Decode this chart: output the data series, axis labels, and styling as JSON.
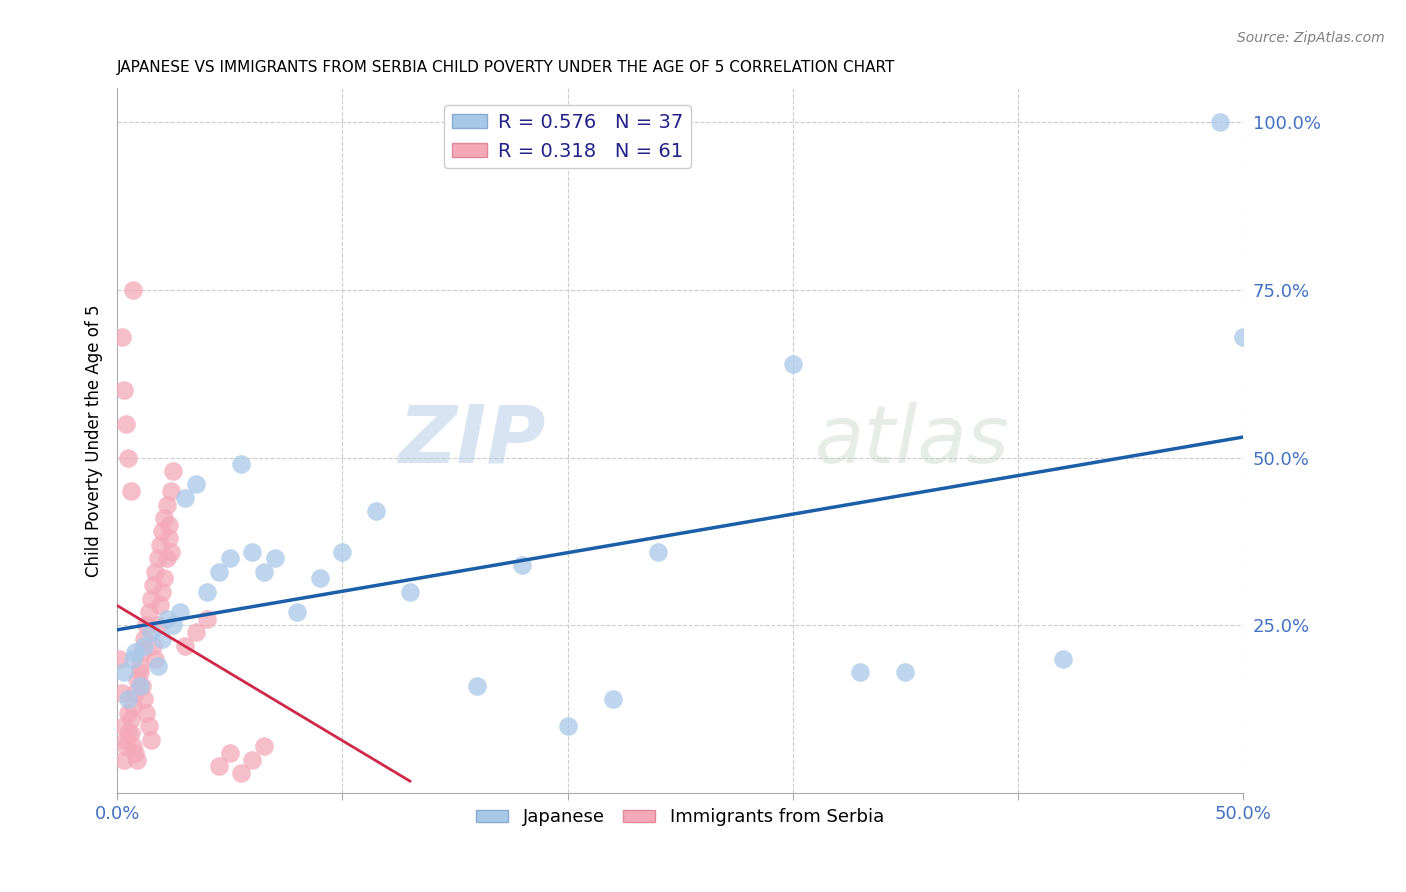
{
  "title": "JAPANESE VS IMMIGRANTS FROM SERBIA CHILD POVERTY UNDER THE AGE OF 5 CORRELATION CHART",
  "source": "Source: ZipAtlas.com",
  "ylabel": "Child Poverty Under the Age of 5",
  "xlim": [
    0.0,
    0.5
  ],
  "ylim": [
    0.0,
    1.05
  ],
  "japanese_R": 0.576,
  "japanese_N": 37,
  "serbia_R": 0.318,
  "serbia_N": 61,
  "japanese_color": "#a8c8e8",
  "japanese_line_color": "#1a5fa8",
  "serbia_color": "#f4a8b8",
  "serbia_line_color": "#d02848",
  "watermark_zip": "ZIP",
  "watermark_atlas": "atlas",
  "legend_label1": "R = 0.576   N = 37",
  "legend_label2": "R = 0.318   N = 61",
  "bottom_legend_japanese": "Japanese",
  "bottom_legend_serbia": "Immigrants from Serbia",
  "japanese_x": [
    0.003,
    0.005,
    0.007,
    0.008,
    0.01,
    0.012,
    0.015,
    0.018,
    0.02,
    0.022,
    0.025,
    0.028,
    0.03,
    0.035,
    0.04,
    0.045,
    0.05,
    0.055,
    0.06,
    0.065,
    0.07,
    0.08,
    0.09,
    0.1,
    0.115,
    0.13,
    0.16,
    0.18,
    0.2,
    0.22,
    0.24,
    0.3,
    0.33,
    0.35,
    0.42,
    0.49,
    0.5
  ],
  "japanese_y": [
    0.18,
    0.14,
    0.2,
    0.21,
    0.16,
    0.22,
    0.24,
    0.19,
    0.23,
    0.26,
    0.25,
    0.27,
    0.44,
    0.46,
    0.3,
    0.33,
    0.35,
    0.49,
    0.36,
    0.33,
    0.35,
    0.27,
    0.32,
    0.36,
    0.42,
    0.3,
    0.16,
    0.34,
    0.1,
    0.14,
    0.36,
    0.64,
    0.18,
    0.18,
    0.2,
    1.0,
    0.68
  ],
  "serbia_x": [
    0.001,
    0.002,
    0.003,
    0.004,
    0.005,
    0.006,
    0.007,
    0.008,
    0.009,
    0.01,
    0.011,
    0.012,
    0.013,
    0.014,
    0.015,
    0.016,
    0.017,
    0.018,
    0.019,
    0.02,
    0.021,
    0.022,
    0.023,
    0.024,
    0.025,
    0.003,
    0.004,
    0.005,
    0.006,
    0.007,
    0.008,
    0.009,
    0.01,
    0.011,
    0.012,
    0.013,
    0.014,
    0.015,
    0.016,
    0.017,
    0.018,
    0.019,
    0.02,
    0.021,
    0.022,
    0.023,
    0.024,
    0.03,
    0.035,
    0.04,
    0.045,
    0.05,
    0.055,
    0.06,
    0.065,
    0.002,
    0.003,
    0.004,
    0.005,
    0.006,
    0.007
  ],
  "serbia_y": [
    0.2,
    0.15,
    0.1,
    0.08,
    0.12,
    0.09,
    0.07,
    0.06,
    0.05,
    0.18,
    0.16,
    0.14,
    0.12,
    0.1,
    0.08,
    0.22,
    0.2,
    0.25,
    0.28,
    0.3,
    0.32,
    0.35,
    0.4,
    0.45,
    0.48,
    0.05,
    0.07,
    0.09,
    0.11,
    0.13,
    0.15,
    0.17,
    0.19,
    0.21,
    0.23,
    0.25,
    0.27,
    0.29,
    0.31,
    0.33,
    0.35,
    0.37,
    0.39,
    0.41,
    0.43,
    0.38,
    0.36,
    0.22,
    0.24,
    0.26,
    0.04,
    0.06,
    0.03,
    0.05,
    0.07,
    0.68,
    0.6,
    0.55,
    0.5,
    0.45,
    0.75
  ]
}
